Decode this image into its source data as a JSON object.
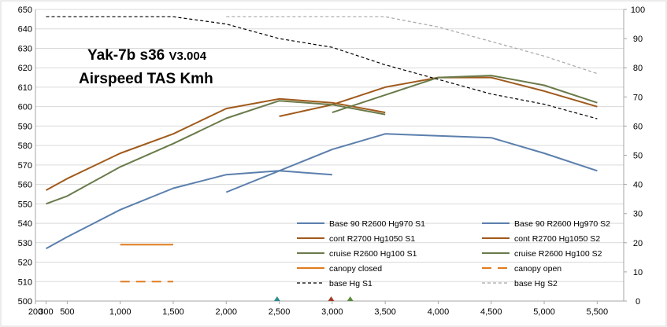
{
  "chart_data": {
    "type": "line",
    "title": "Yak-7b s36",
    "title_version": "V3.004",
    "subtitle": "Airspeed  TAS Kmh",
    "x": {
      "min": 200,
      "max": 5750,
      "ticks": [
        200,
        300,
        500,
        1000,
        1500,
        2000,
        2500,
        3000,
        3500,
        4000,
        4500,
        5000,
        5500
      ],
      "tick_labels": [
        "200",
        "300",
        "500",
        "1,000",
        "1,500",
        "2,000",
        "2,500",
        "3,000",
        "3,500",
        "4,000",
        "4,500",
        "5,000",
        "5,500"
      ]
    },
    "y_left": {
      "min": 500,
      "max": 650,
      "step": 10
    },
    "y_right": {
      "min": 0,
      "max": 100,
      "step": 10
    },
    "grid": "horizontal",
    "legend_position": "bottom-right, inside plot",
    "series": [
      {
        "name": "Base 90 R2600  Hg970 S1",
        "axis": "left",
        "color": "#5b7fad",
        "dash": "solid",
        "x": [
          300,
          500,
          1000,
          1500,
          2000,
          2500,
          3000
        ],
        "y": [
          527,
          533,
          547,
          558,
          565,
          567,
          565
        ]
      },
      {
        "name": "Base 90 R2600  Hg970 S2",
        "axis": "left",
        "color": "#5b7fad",
        "dash": "solid",
        "x": [
          2000,
          2500,
          3000,
          3500,
          4500,
          5000,
          5500
        ],
        "y": [
          556,
          567,
          578,
          586,
          584,
          576,
          567
        ]
      },
      {
        "name": "cont R2700 Hg1050 S1",
        "axis": "left",
        "color": "#a05a1c",
        "dash": "solid",
        "x": [
          300,
          500,
          1000,
          1500,
          2000,
          2500,
          3000,
          3500
        ],
        "y": [
          557,
          563,
          576,
          586,
          599,
          604,
          602,
          597
        ]
      },
      {
        "name": "cont R2700 Hg1050 S2",
        "axis": "left",
        "color": "#a05a1c",
        "dash": "solid",
        "x": [
          2500,
          3000,
          3500,
          4000,
          4500,
          5000,
          5500
        ],
        "y": [
          595,
          601,
          610,
          615,
          615,
          608,
          600
        ]
      },
      {
        "name": "cruise R2600 Hg100 S1",
        "axis": "left",
        "color": "#6a7a4a",
        "dash": "solid",
        "x": [
          300,
          500,
          1000,
          1500,
          2000,
          2500,
          3000,
          3500
        ],
        "y": [
          550,
          554,
          569,
          581,
          594,
          603,
          601,
          596
        ]
      },
      {
        "name": "cruise R2600 Hg100 S2",
        "axis": "left",
        "color": "#6a7a4a",
        "dash": "solid",
        "x": [
          3000,
          3500,
          4000,
          4500,
          5000,
          5500
        ],
        "y": [
          597,
          606,
          615,
          616,
          611,
          602
        ]
      },
      {
        "name": "canopy closed",
        "axis": "left",
        "color": "#e07b1f",
        "dash": "solid",
        "x": [
          1000,
          1500
        ],
        "y": [
          529,
          529
        ]
      },
      {
        "name": "canopy open",
        "axis": "left",
        "color": "#e07b1f",
        "dash": "long-dash",
        "x": [
          1000,
          1500
        ],
        "y": [
          510,
          510
        ]
      },
      {
        "name": "base Hg S1",
        "axis": "right",
        "color": "#000000",
        "dash": "dash",
        "x": [
          300,
          500,
          1000,
          1500,
          2000,
          2500,
          3000,
          3500,
          4000,
          4500,
          5000,
          5500
        ],
        "y": [
          97.5,
          97.5,
          97.5,
          97.5,
          95,
          90,
          87,
          81,
          76,
          71,
          67.5,
          62.5
        ]
      },
      {
        "name": "base Hg S2",
        "axis": "right",
        "color": "#a6a6a6",
        "dash": "dash",
        "x": [
          2000,
          2500,
          3000,
          3500,
          4000,
          4500,
          5000,
          5500
        ],
        "y": [
          97.5,
          97.5,
          97.5,
          97.5,
          94,
          89,
          84,
          78
        ]
      }
    ],
    "markers": [
      {
        "name": "marker-blue",
        "x": 2480,
        "color": "#2e8b8b"
      },
      {
        "name": "marker-red",
        "x": 2990,
        "color": "#a23b2a"
      },
      {
        "name": "marker-green",
        "x": 3170,
        "color": "#5a8a3a"
      }
    ]
  }
}
